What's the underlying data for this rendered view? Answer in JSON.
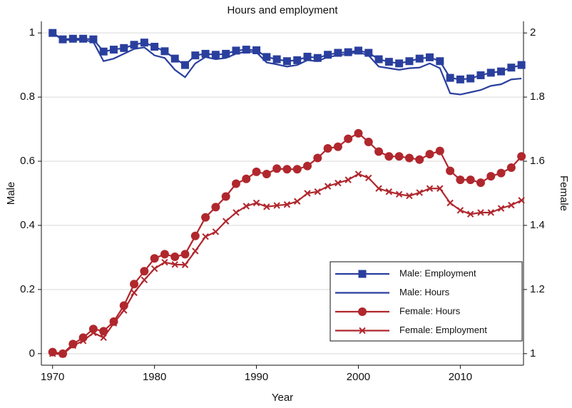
{
  "chart_data": {
    "type": "line",
    "title": "Hours and employment",
    "x_label": "Year",
    "y_label": "Male",
    "y2_label": "Female",
    "x": [
      1970,
      1971,
      1972,
      1973,
      1974,
      1975,
      1976,
      1977,
      1978,
      1979,
      1980,
      1981,
      1982,
      1983,
      1984,
      1985,
      1986,
      1987,
      1988,
      1989,
      1990,
      1991,
      1992,
      1993,
      1994,
      1995,
      1996,
      1997,
      1998,
      1999,
      2000,
      2001,
      2002,
      2003,
      2004,
      2005,
      2006,
      2007,
      2008,
      2009,
      2010,
      2011,
      2012,
      2013,
      2014,
      2015,
      2016
    ],
    "series": [
      {
        "name": "Male: Employment",
        "color": "#2a3f9d",
        "marker": "square",
        "axis": "y",
        "values": [
          1.0,
          0.98,
          0.982,
          0.982,
          0.98,
          0.942,
          0.948,
          0.953,
          0.963,
          0.97,
          0.957,
          0.943,
          0.92,
          0.9,
          0.93,
          0.935,
          0.932,
          0.935,
          0.945,
          0.948,
          0.946,
          0.925,
          0.918,
          0.912,
          0.915,
          0.926,
          0.922,
          0.932,
          0.938,
          0.94,
          0.945,
          0.938,
          0.918,
          0.91,
          0.905,
          0.912,
          0.92,
          0.924,
          0.912,
          0.86,
          0.855,
          0.858,
          0.868,
          0.876,
          0.88,
          0.892,
          0.9
        ]
      },
      {
        "name": "Male: Hours",
        "color": "#2a3f9d",
        "marker": "none",
        "axis": "y",
        "values": [
          1.0,
          0.978,
          0.978,
          0.978,
          0.972,
          0.912,
          0.92,
          0.935,
          0.95,
          0.955,
          0.93,
          0.922,
          0.885,
          0.862,
          0.905,
          0.925,
          0.918,
          0.922,
          0.935,
          0.942,
          0.94,
          0.908,
          0.902,
          0.895,
          0.9,
          0.915,
          0.912,
          0.925,
          0.93,
          0.935,
          0.94,
          0.93,
          0.895,
          0.89,
          0.885,
          0.89,
          0.892,
          0.905,
          0.89,
          0.812,
          0.808,
          0.815,
          0.822,
          0.835,
          0.84,
          0.855,
          0.858
        ]
      },
      {
        "name": "Female: Hours",
        "color": "#b0272d",
        "marker": "circle",
        "axis": "y2",
        "values": [
          1.005,
          1.0,
          1.03,
          1.05,
          1.077,
          1.07,
          1.1,
          1.15,
          1.217,
          1.257,
          1.297,
          1.31,
          1.302,
          1.31,
          1.367,
          1.425,
          1.457,
          1.49,
          1.53,
          1.545,
          1.567,
          1.56,
          1.577,
          1.575,
          1.575,
          1.585,
          1.61,
          1.64,
          1.645,
          1.67,
          1.687,
          1.66,
          1.63,
          1.615,
          1.615,
          1.61,
          1.605,
          1.622,
          1.632,
          1.57,
          1.542,
          1.542,
          1.533,
          1.553,
          1.563,
          1.58,
          1.615
        ]
      },
      {
        "name": "Female: Employment",
        "color": "#b0272d",
        "marker": "x",
        "axis": "y2",
        "values": [
          1.0,
          0.998,
          1.025,
          1.04,
          1.065,
          1.05,
          1.095,
          1.135,
          1.19,
          1.23,
          1.265,
          1.285,
          1.278,
          1.277,
          1.32,
          1.365,
          1.38,
          1.413,
          1.44,
          1.46,
          1.47,
          1.458,
          1.462,
          1.465,
          1.475,
          1.5,
          1.505,
          1.522,
          1.532,
          1.542,
          1.56,
          1.548,
          1.515,
          1.505,
          1.497,
          1.492,
          1.502,
          1.515,
          1.515,
          1.47,
          1.447,
          1.435,
          1.44,
          1.44,
          1.453,
          1.463,
          1.478
        ]
      }
    ],
    "xlim": [
      1968.9,
      2016.2
    ],
    "xticks": [
      1970,
      1980,
      1990,
      2000,
      2010
    ],
    "ylim": [
      -0.036,
      1.036
    ],
    "yticks": [
      0,
      0.2,
      0.4,
      0.6,
      0.8,
      1
    ],
    "y2lim": [
      0.964,
      2.036
    ],
    "y2ticks": [
      1,
      1.2,
      1.4,
      1.6,
      1.8,
      2
    ],
    "grid": true,
    "legend_position": "lower right"
  }
}
